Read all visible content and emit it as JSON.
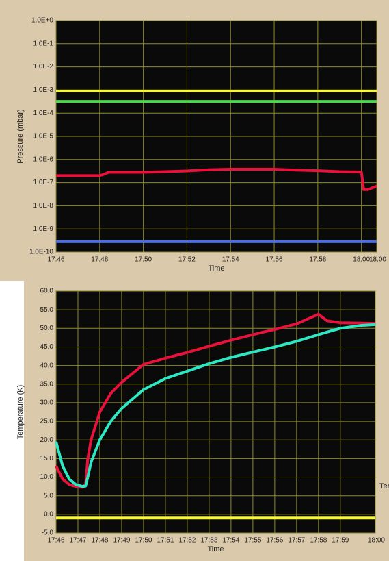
{
  "chart_data": [
    {
      "type": "line",
      "log_y": true,
      "grid": true,
      "x_label": "Time",
      "y_label": "Pressure (mbar)",
      "xlim": [
        0,
        14.7
      ],
      "xticks": [
        {
          "value": 0,
          "label": "17:46"
        },
        {
          "value": 2,
          "label": "17:48"
        },
        {
          "value": 4,
          "label": "17:50"
        },
        {
          "value": 6,
          "label": "17:52"
        },
        {
          "value": 8,
          "label": "17:54"
        },
        {
          "value": 10,
          "label": "17:56"
        },
        {
          "value": 12,
          "label": "17:58"
        },
        {
          "value": 14,
          "label": "18:00"
        },
        {
          "value": 14.7,
          "label": "18:00"
        }
      ],
      "ylim": [
        1e-10,
        1
      ],
      "yticks": [
        {
          "value": 1e-10,
          "label": "1.0E-10"
        },
        {
          "value": 1e-09,
          "label": "1.0E-9"
        },
        {
          "value": 1e-08,
          "label": "1.0E-8"
        },
        {
          "value": 1e-07,
          "label": "1.0E-7"
        },
        {
          "value": 1e-06,
          "label": "1.0E-6"
        },
        {
          "value": 1e-05,
          "label": "1.0E-5"
        },
        {
          "value": 0.0001,
          "label": "1.0E-4"
        },
        {
          "value": 0.001,
          "label": "1.0E-3"
        },
        {
          "value": 0.01,
          "label": "1.0E-2"
        },
        {
          "value": 0.1,
          "label": "1.0E-1"
        },
        {
          "value": 1,
          "label": "1.0E+0"
        }
      ],
      "x": [
        0,
        0.5,
        1,
        1.5,
        2,
        2.2,
        2.4,
        3,
        4,
        5,
        6,
        7,
        8,
        9,
        10,
        11,
        12,
        13,
        13.9,
        14,
        14.1,
        14.3,
        14.5,
        14.7
      ],
      "series": [
        {
          "color": "#f5f542",
          "values": [
            0.0009,
            0.0009,
            0.0009,
            0.0009,
            0.0009,
            0.0009,
            0.0009,
            0.0009,
            0.0009,
            0.0009,
            0.0009,
            0.0009,
            0.0009,
            0.0009,
            0.0009,
            0.0009,
            0.0009,
            0.0009,
            0.0009,
            0.0009,
            0.0009,
            0.0009,
            0.0009,
            0.0009
          ]
        },
        {
          "color": "#4fd64f",
          "values": [
            0.00032,
            0.00032,
            0.00032,
            0.00032,
            0.00032,
            0.00032,
            0.00032,
            0.00032,
            0.00032,
            0.00032,
            0.00032,
            0.00032,
            0.00032,
            0.00032,
            0.00032,
            0.00032,
            0.00032,
            0.00032,
            0.00032,
            0.00032,
            0.00032,
            0.00032,
            0.00032,
            0.00032
          ]
        },
        {
          "color": "#e8123c",
          "values": [
            2e-07,
            2e-07,
            2e-07,
            2e-07,
            2e-07,
            2.3e-07,
            2.8e-07,
            2.8e-07,
            2.8e-07,
            3e-07,
            3.2e-07,
            3.6e-07,
            3.8e-07,
            3.8e-07,
            3.8e-07,
            3.5e-07,
            3.3e-07,
            3e-07,
            2.9e-07,
            2.8e-07,
            5e-08,
            5e-08,
            6e-08,
            7e-08
          ]
        },
        {
          "color": "#4a6ee8",
          "values": [
            2.8e-10,
            2.8e-10,
            2.8e-10,
            2.8e-10,
            2.8e-10,
            2.8e-10,
            2.8e-10,
            2.8e-10,
            2.8e-10,
            2.8e-10,
            2.8e-10,
            2.8e-10,
            2.8e-10,
            2.8e-10,
            2.8e-10,
            2.8e-10,
            2.8e-10,
            2.8e-10,
            2.8e-10,
            2.8e-10,
            2.8e-10,
            2.8e-10,
            2.8e-10,
            2.8e-10
          ]
        }
      ]
    },
    {
      "type": "line",
      "log_y": false,
      "grid": true,
      "x_label": "Time",
      "y_label": "Temperature (K)",
      "legend_text": "Ter",
      "xlim": [
        0,
        14.6
      ],
      "xticks": [
        {
          "value": 0,
          "label": "17:46"
        },
        {
          "value": 1,
          "label": "17:47"
        },
        {
          "value": 2,
          "label": "17:48"
        },
        {
          "value": 3,
          "label": "17:49"
        },
        {
          "value": 4,
          "label": "17:50"
        },
        {
          "value": 5,
          "label": "17:51"
        },
        {
          "value": 6,
          "label": "17:52"
        },
        {
          "value": 7,
          "label": "17:53"
        },
        {
          "value": 8,
          "label": "17:54"
        },
        {
          "value": 9,
          "label": "17:55"
        },
        {
          "value": 10,
          "label": "17:56"
        },
        {
          "value": 11,
          "label": "17:57"
        },
        {
          "value": 12,
          "label": "17:58"
        },
        {
          "value": 13,
          "label": "17:59"
        },
        {
          "value": 14.6,
          "label": "18:00"
        }
      ],
      "ylim": [
        -5,
        60
      ],
      "yticks": [
        {
          "value": -5,
          "label": "-5.0"
        },
        {
          "value": 0,
          "label": "0.0"
        },
        {
          "value": 5,
          "label": "5.0"
        },
        {
          "value": 10,
          "label": "10.0"
        },
        {
          "value": 15,
          "label": "15.0"
        },
        {
          "value": 20,
          "label": "20.0"
        },
        {
          "value": 25,
          "label": "25.0"
        },
        {
          "value": 30,
          "label": "30.0"
        },
        {
          "value": 35,
          "label": "35.0"
        },
        {
          "value": 40,
          "label": "40.0"
        },
        {
          "value": 45,
          "label": "45.0"
        },
        {
          "value": 50,
          "label": "50.0"
        },
        {
          "value": 55,
          "label": "55.0"
        },
        {
          "value": 60,
          "label": "60.0"
        }
      ],
      "x": [
        0,
        0.3,
        0.6,
        0.9,
        1.2,
        1.35,
        1.45,
        1.6,
        2,
        2.5,
        3,
        4,
        5,
        6,
        7,
        8,
        9,
        10,
        11,
        12,
        12.4,
        13,
        14,
        14.6
      ],
      "series": [
        {
          "color": "#f5f542",
          "values": [
            -1,
            -1,
            -1,
            -1,
            -1,
            -1,
            -1,
            -1,
            -1,
            -1,
            -1,
            -1,
            -1,
            -1,
            -1,
            -1,
            -1,
            -1,
            -1,
            -1,
            -1,
            -1,
            -1,
            -1
          ]
        },
        {
          "color": "#e8123c",
          "values": [
            13,
            9.5,
            8,
            7.5,
            7.3,
            8,
            15,
            20,
            27.5,
            32.5,
            35.5,
            40.3,
            42,
            43.5,
            45.2,
            46.8,
            48.3,
            49.7,
            51.2,
            53.8,
            52,
            51.5,
            51.4,
            51.3
          ]
        },
        {
          "color": "#2ee8c4",
          "values": [
            19.5,
            13,
            9.5,
            8,
            7.5,
            7.6,
            10,
            14,
            20,
            25,
            28.5,
            33.5,
            36.5,
            38.5,
            40.5,
            42.2,
            43.6,
            45,
            46.5,
            48.3,
            49,
            50,
            50.8,
            51
          ]
        }
      ]
    }
  ]
}
